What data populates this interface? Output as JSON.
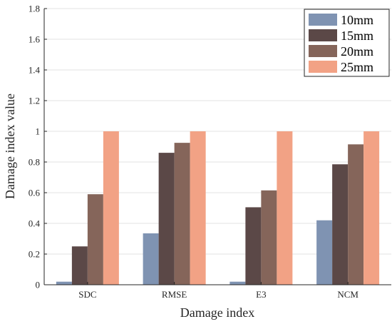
{
  "chart_data": {
    "type": "bar",
    "title": "",
    "xlabel": "Damage index",
    "ylabel": "Damage index value",
    "categories": [
      "SDC",
      "RMSE",
      "E3",
      "NCM"
    ],
    "ylim": [
      0,
      1.8
    ],
    "yticks": [
      "0",
      "0.2",
      "0.4",
      "0.6",
      "0.8",
      "1",
      "1.2",
      "1.4",
      "1.6",
      "1.8"
    ],
    "grid": true,
    "legend_position": "top-right",
    "series": [
      {
        "name": "10mm",
        "color": "#7f93b2",
        "values": [
          0.02,
          0.335,
          0.02,
          0.42
        ]
      },
      {
        "name": "15mm",
        "color": "#5b4847",
        "values": [
          0.25,
          0.86,
          0.505,
          0.785
        ]
      },
      {
        "name": "20mm",
        "color": "#85655a",
        "values": [
          0.59,
          0.925,
          0.615,
          0.915
        ]
      },
      {
        "name": "25mm",
        "color": "#f2a285",
        "values": [
          1.0,
          1.0,
          1.0,
          1.0
        ]
      }
    ]
  }
}
